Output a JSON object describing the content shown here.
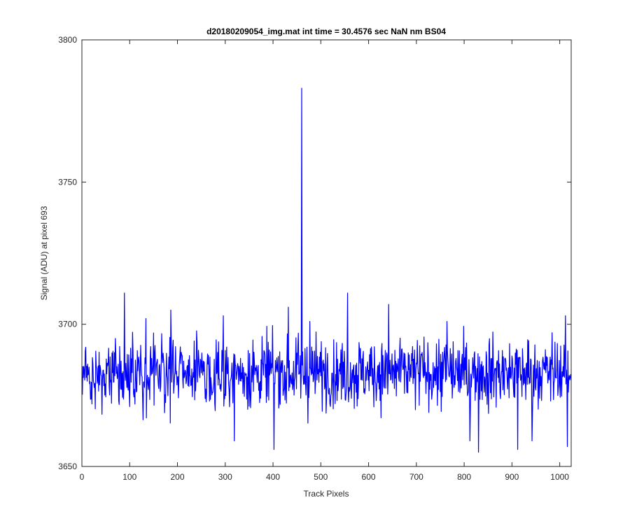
{
  "chart_data": {
    "type": "line",
    "title": "d20180209054_img.mat int time = 30.4576 sec  NaN nm BS04",
    "xlabel": "Track Pixels",
    "ylabel": "Signal (ADU) at pixel 693",
    "xlim": [
      0,
      1024
    ],
    "ylim": [
      3650,
      3800
    ],
    "xticks": [
      0,
      100,
      200,
      300,
      400,
      500,
      600,
      700,
      800,
      900,
      1000
    ],
    "yticks": [
      3650,
      3700,
      3750,
      3800
    ],
    "grid": false,
    "line_color": "#0000ff",
    "series_description": "Signal vs track pixel index 1..1024; baseline about 3683 ADU with noise roughly 3656-3711 ADU; single spike at pixel 460.",
    "series": [
      {
        "x_start": 1,
        "x_step": 1,
        "baseline": 3683,
        "noise_range": [
          3656,
          3711
        ],
        "highlights": [
          {
            "x": 89,
            "y": 3711
          },
          {
            "x": 134,
            "y": 3702
          },
          {
            "x": 186,
            "y": 3705
          },
          {
            "x": 296,
            "y": 3703
          },
          {
            "x": 319,
            "y": 3659
          },
          {
            "x": 402,
            "y": 3656
          },
          {
            "x": 432,
            "y": 3706
          },
          {
            "x": 460,
            "y": 3783
          },
          {
            "x": 477,
            "y": 3701
          },
          {
            "x": 556,
            "y": 3711
          },
          {
            "x": 642,
            "y": 3707
          },
          {
            "x": 764,
            "y": 3701
          },
          {
            "x": 812,
            "y": 3659
          },
          {
            "x": 830,
            "y": 3655
          },
          {
            "x": 912,
            "y": 3656
          },
          {
            "x": 942,
            "y": 3659
          },
          {
            "x": 1012,
            "y": 3703
          },
          {
            "x": 1016,
            "y": 3657
          }
        ]
      }
    ]
  }
}
